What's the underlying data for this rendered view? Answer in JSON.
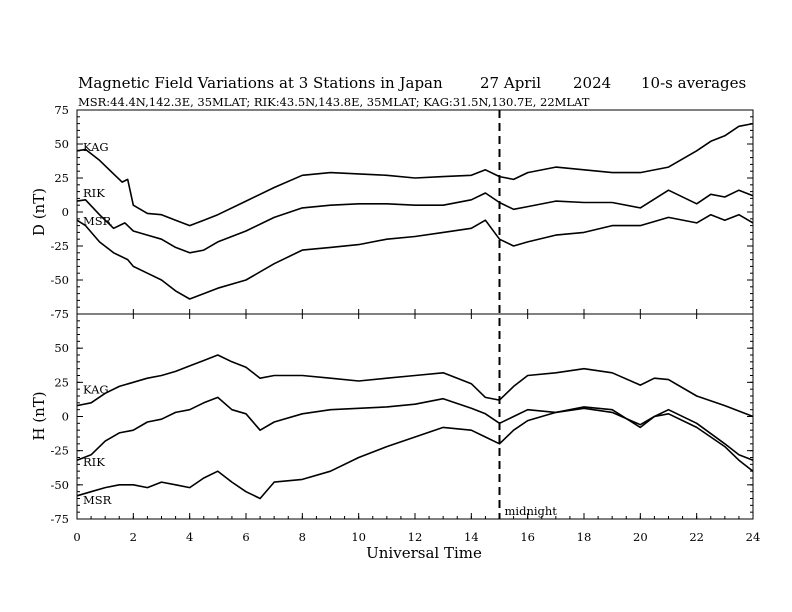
{
  "header": {
    "title": "Magnetic Field Variations at 3 Stations in Japan",
    "date": "27  April",
    "year": "2024",
    "averaging": "10-s averages",
    "stations": "MSR:44.4N,142.3E, 35MLAT;  RIK:43.5N,143.8E, 35MLAT;  KAG:31.5N,130.7E, 22MLAT"
  },
  "chart_data": {
    "type": "line",
    "xlabel": "Universal Time",
    "x_ticks": [
      0,
      2,
      4,
      6,
      8,
      10,
      12,
      14,
      16,
      18,
      20,
      22,
      24
    ],
    "xlim": [
      0,
      24
    ],
    "annotation": {
      "x": 15,
      "label": "midnight",
      "style": "dashed"
    },
    "panels": [
      {
        "ylabel": "D (nT)",
        "ylim": [
          -75,
          75
        ],
        "y_ticks": [
          75,
          50,
          25,
          0,
          -25,
          -50,
          -75
        ],
        "series": [
          {
            "name": "KAG",
            "x": [
              0,
              0.3,
              0.8,
              1.3,
              1.6,
              1.8,
              2.0,
              2.5,
              3.0,
              3.5,
              4.0,
              4.5,
              5.0,
              6.0,
              7.0,
              8.0,
              9.0,
              10.0,
              11.0,
              12.0,
              13.0,
              14.0,
              14.5,
              15.0,
              15.5,
              16.0,
              17.0,
              18.0,
              19.0,
              20.0,
              21.0,
              22.0,
              22.5,
              23.0,
              23.5,
              24.0
            ],
            "y": [
              45,
              46,
              38,
              28,
              22,
              24,
              5,
              -1,
              -2,
              -6,
              -10,
              -6,
              -2,
              8,
              18,
              27,
              29,
              28,
              27,
              25,
              26,
              27,
              31,
              26,
              24,
              29,
              33,
              31,
              29,
              29,
              33,
              45,
              52,
              56,
              63,
              65
            ]
          },
          {
            "name": "RIK",
            "x": [
              0,
              0.3,
              0.8,
              1.3,
              1.7,
              2.0,
              2.5,
              3.0,
              3.5,
              4.0,
              4.5,
              5.0,
              6.0,
              7.0,
              8.0,
              9.0,
              10.0,
              11.0,
              12.0,
              13.0,
              14.0,
              14.5,
              15.0,
              15.5,
              16.0,
              17.0,
              18.0,
              19.0,
              20.0,
              21.0,
              22.0,
              22.5,
              23.0,
              23.5,
              24.0
            ],
            "y": [
              8,
              9,
              -2,
              -12,
              -8,
              -14,
              -17,
              -20,
              -26,
              -30,
              -28,
              -22,
              -14,
              -4,
              3,
              5,
              6,
              6,
              5,
              5,
              9,
              14,
              7,
              2,
              4,
              8,
              7,
              7,
              3,
              16,
              6,
              13,
              11,
              16,
              12
            ]
          },
          {
            "name": "MSR",
            "x": [
              0,
              0.3,
              0.8,
              1.3,
              1.8,
              2.0,
              2.5,
              3.0,
              3.5,
              4.0,
              4.5,
              5.0,
              6.0,
              7.0,
              8.0,
              9.0,
              10.0,
              11.0,
              12.0,
              13.0,
              14.0,
              14.5,
              15.0,
              15.5,
              16.0,
              17.0,
              18.0,
              19.0,
              20.0,
              21.0,
              22.0,
              22.5,
              23.0,
              23.5,
              24.0
            ],
            "y": [
              -6,
              -10,
              -22,
              -30,
              -35,
              -40,
              -45,
              -50,
              -58,
              -64,
              -60,
              -56,
              -50,
              -38,
              -28,
              -26,
              -24,
              -20,
              -18,
              -15,
              -12,
              -6,
              -20,
              -25,
              -22,
              -17,
              -15,
              -10,
              -10,
              -4,
              -8,
              -2,
              -6,
              -2,
              -8
            ]
          }
        ]
      },
      {
        "ylabel": "H (nT)",
        "ylim": [
          -75,
          75
        ],
        "y_ticks": [
          50,
          25,
          0,
          -25,
          -50,
          -75
        ],
        "series": [
          {
            "name": "KAG",
            "x": [
              0,
              0.5,
              1.0,
              1.5,
              2.0,
              2.5,
              3.0,
              3.5,
              4.0,
              4.5,
              5.0,
              5.5,
              6.0,
              6.5,
              7.0,
              8.0,
              9.0,
              10.0,
              11.0,
              12.0,
              13.0,
              14.0,
              14.5,
              15.0,
              15.5,
              16.0,
              17.0,
              18.0,
              19.0,
              20.0,
              20.5,
              21.0,
              22.0,
              23.0,
              24.0
            ],
            "y": [
              8,
              10,
              17,
              22,
              25,
              28,
              30,
              33,
              37,
              41,
              45,
              40,
              36,
              28,
              30,
              30,
              28,
              26,
              28,
              30,
              32,
              24,
              14,
              12,
              22,
              30,
              32,
              35,
              32,
              23,
              28,
              27,
              15,
              8,
              0
            ]
          },
          {
            "name": "RIK",
            "x": [
              0,
              0.5,
              1.0,
              1.5,
              2.0,
              2.5,
              3.0,
              3.5,
              4.0,
              4.5,
              5.0,
              5.5,
              6.0,
              6.5,
              7.0,
              8.0,
              9.0,
              10.0,
              11.0,
              12.0,
              13.0,
              14.0,
              14.5,
              15.0,
              15.5,
              16.0,
              17.0,
              18.0,
              19.0,
              20.0,
              20.5,
              21.0,
              22.0,
              23.0,
              23.5,
              24.0
            ],
            "y": [
              -32,
              -28,
              -18,
              -12,
              -10,
              -4,
              -2,
              3,
              5,
              10,
              14,
              5,
              2,
              -10,
              -4,
              2,
              5,
              6,
              7,
              9,
              13,
              6,
              2,
              -5,
              0,
              5,
              3,
              7,
              5,
              -8,
              0,
              5,
              -5,
              -20,
              -28,
              -32
            ]
          },
          {
            "name": "MSR",
            "x": [
              0,
              0.5,
              1.0,
              1.5,
              2.0,
              2.5,
              3.0,
              3.5,
              4.0,
              4.5,
              5.0,
              5.5,
              6.0,
              6.5,
              7.0,
              8.0,
              9.0,
              10.0,
              11.0,
              12.0,
              13.0,
              14.0,
              14.5,
              15.0,
              15.5,
              16.0,
              17.0,
              18.0,
              19.0,
              20.0,
              20.5,
              21.0,
              22.0,
              23.0,
              23.5,
              24.0
            ],
            "y": [
              -58,
              -55,
              -52,
              -50,
              -50,
              -52,
              -48,
              -50,
              -52,
              -45,
              -40,
              -48,
              -55,
              -60,
              -48,
              -46,
              -40,
              -30,
              -22,
              -15,
              -8,
              -10,
              -15,
              -20,
              -10,
              -3,
              3,
              6,
              3,
              -6,
              0,
              2,
              -8,
              -22,
              -32,
              -40
            ]
          }
        ]
      }
    ]
  }
}
